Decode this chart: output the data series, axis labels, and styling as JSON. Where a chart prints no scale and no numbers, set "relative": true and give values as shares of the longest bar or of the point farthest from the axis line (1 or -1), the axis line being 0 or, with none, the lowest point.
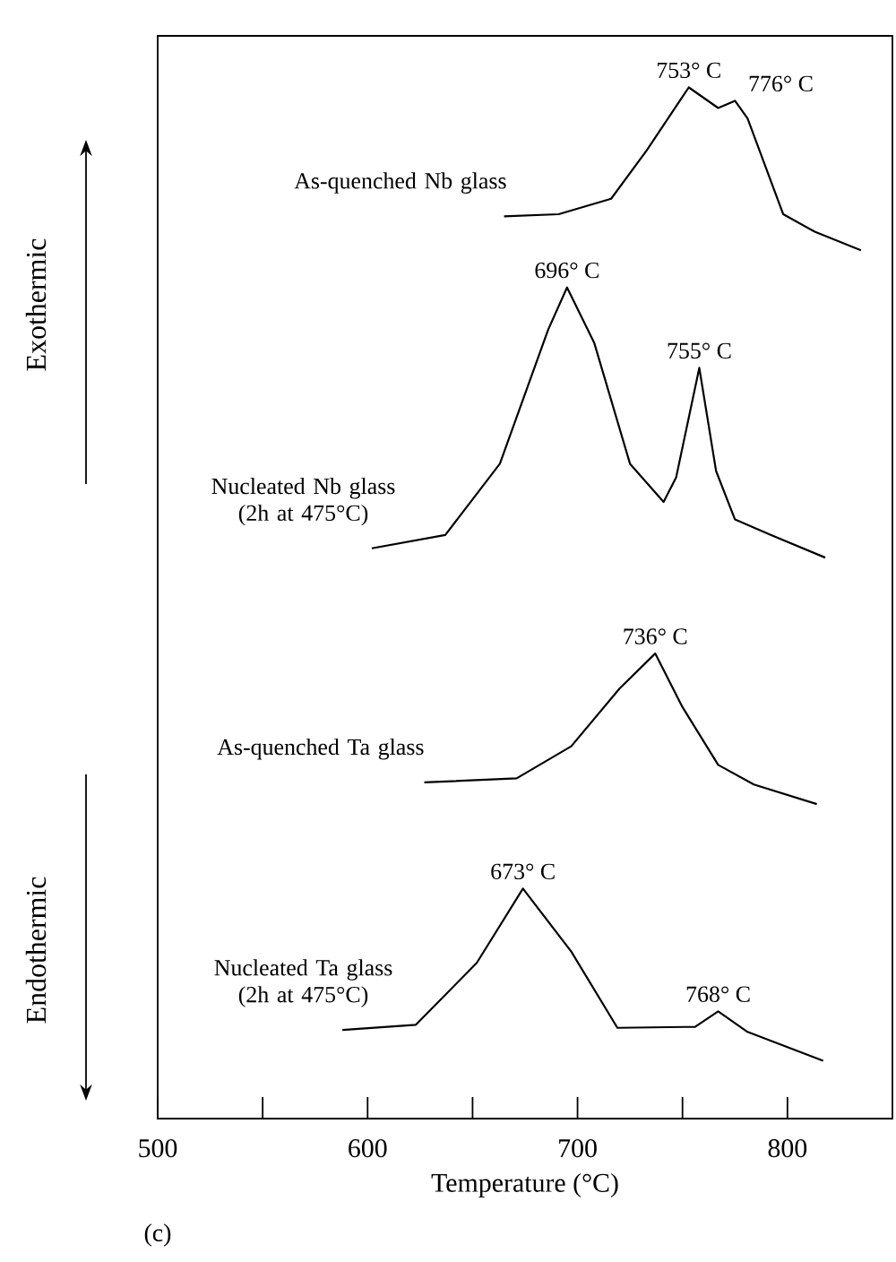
{
  "chart_data": {
    "type": "line",
    "relative": true,
    "xlabel": "Temperature (°C)",
    "xlim": [
      500,
      850
    ],
    "xticks": [
      500,
      {
        "value": 550,
        "label": null
      },
      600,
      {
        "value": 650,
        "label": null
      },
      700,
      {
        "value": 750,
        "label": null
      },
      800
    ],
    "marker": "none",
    "line_style": "solid",
    "series": [
      {
        "name": "As-quenched Nb glass",
        "color": "#000000",
        "x": [
          665,
          691,
          716,
          733,
          753,
          767,
          775,
          781,
          798,
          813,
          835
        ],
        "values": [
          0.875,
          0.877,
          0.892,
          0.939,
          1.0,
          0.98,
          0.987,
          0.97,
          0.877,
          0.86,
          0.842
        ]
      },
      {
        "name": "Nucleated Nb glass (2h at 475°C)",
        "color": "#000000",
        "x": [
          602,
          637,
          663,
          686,
          695,
          708,
          725,
          741,
          747,
          758,
          766,
          775,
          792,
          818
        ],
        "values": [
          0.553,
          0.566,
          0.635,
          0.765,
          0.806,
          0.752,
          0.635,
          0.598,
          0.622,
          0.728,
          0.628,
          0.581,
          0.566,
          0.544
        ]
      },
      {
        "name": "As-quenched Ta glass",
        "color": "#000000",
        "x": [
          627,
          671,
          697,
          720,
          737,
          750,
          767,
          784,
          814
        ],
        "values": [
          0.326,
          0.33,
          0.361,
          0.417,
          0.451,
          0.399,
          0.343,
          0.324,
          0.305
        ]
      },
      {
        "name": "Nucleated Ta glass (2h at 475°C)",
        "color": "#000000",
        "x": [
          588,
          623,
          652,
          674,
          697,
          719,
          756,
          767,
          781,
          817
        ],
        "values": [
          0.086,
          0.091,
          0.151,
          0.223,
          0.162,
          0.088,
          0.089,
          0.104,
          0.084,
          0.056
        ]
      }
    ],
    "annotations": [
      {
        "text": "753° C",
        "x": 753,
        "y": 1.0
      },
      {
        "text": "776° C",
        "x": 776,
        "y": 0.987
      },
      {
        "text": "696° C",
        "x": 695,
        "y": 0.806
      },
      {
        "text": "755° C",
        "x": 758,
        "y": 0.728
      },
      {
        "text": "736° C",
        "x": 737,
        "y": 0.451
      },
      {
        "text": "673° C",
        "x": 674,
        "y": 0.223
      },
      {
        "text": "768° C",
        "x": 767,
        "y": 0.104
      },
      "Exothermic",
      "Endothermic",
      "(c)"
    ]
  }
}
